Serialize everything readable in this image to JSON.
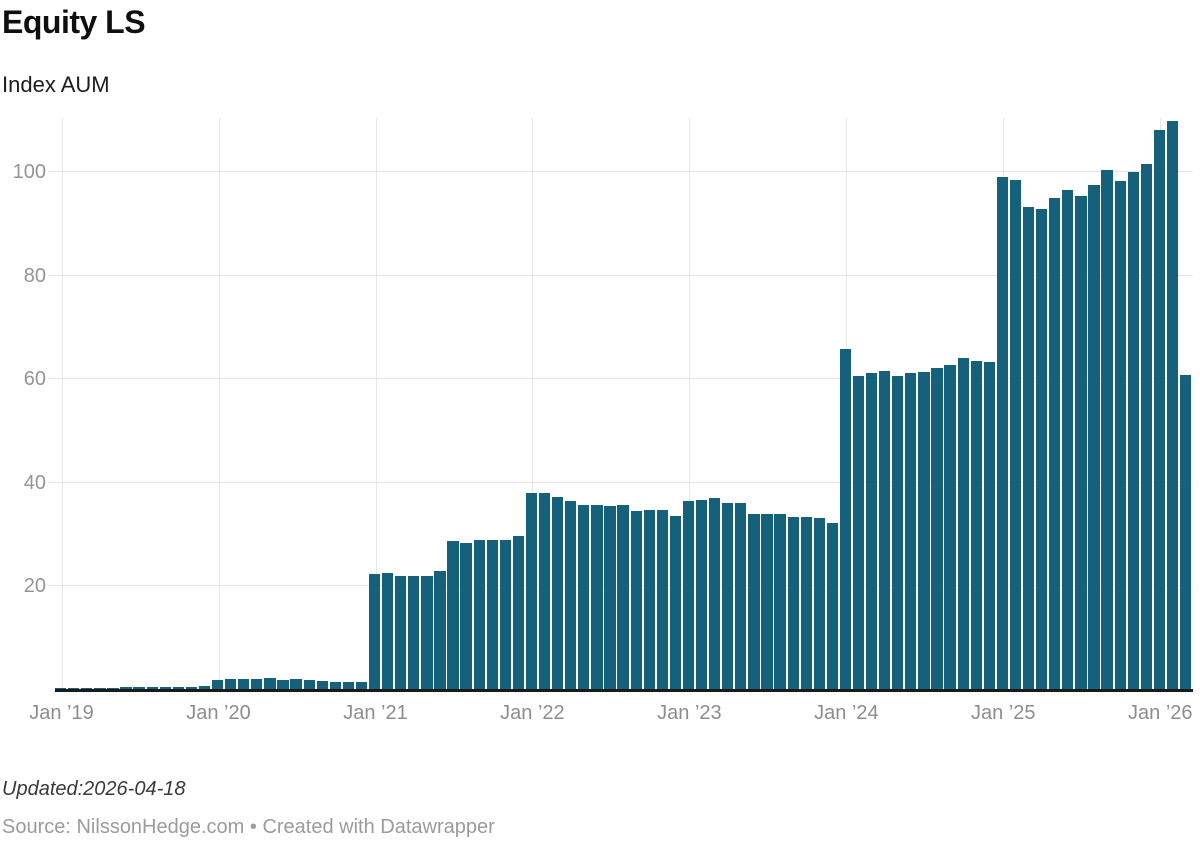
{
  "header": {
    "title": "Equity LS",
    "subtitle": "Index AUM"
  },
  "footer": {
    "updated": "Updated:2026-04-18",
    "source": "Source: NilssonHedge.com • Created with Datawrapper"
  },
  "colors": {
    "bar": "#15607a",
    "baseline": "#1a1a1a",
    "h_gridline": "#e4e4e4",
    "v_gridline": "#e7e7e7",
    "y_label": "#949494",
    "x_label": "#8d8d8d"
  },
  "chart_data": {
    "type": "bar",
    "title": "Equity LS",
    "subtitle": "Index AUM",
    "xlabel": "",
    "ylabel": "",
    "grid": "both",
    "legend": "none",
    "ylim": [
      0,
      110.4
    ],
    "y_ticks": [
      20,
      40,
      60,
      80,
      100
    ],
    "x_tick_labels": [
      "Jan ’19",
      "Jan ’20",
      "Jan ’21",
      "Jan ’22",
      "Jan ’23",
      "Jan ’24",
      "Jan ’25",
      "Jan ’26"
    ],
    "x_tick_indices": [
      0,
      12,
      24,
      36,
      48,
      60,
      72,
      84
    ],
    "x": [
      "2019-01",
      "2019-02",
      "2019-03",
      "2019-04",
      "2019-05",
      "2019-06",
      "2019-07",
      "2019-08",
      "2019-09",
      "2019-10",
      "2019-11",
      "2019-12",
      "2020-01",
      "2020-02",
      "2020-03",
      "2020-04",
      "2020-05",
      "2020-06",
      "2020-07",
      "2020-08",
      "2020-09",
      "2020-10",
      "2020-11",
      "2020-12",
      "2021-01",
      "2021-02",
      "2021-03",
      "2021-04",
      "2021-05",
      "2021-06",
      "2021-07",
      "2021-08",
      "2021-09",
      "2021-10",
      "2021-11",
      "2021-12",
      "2022-01",
      "2022-02",
      "2022-03",
      "2022-04",
      "2022-05",
      "2022-06",
      "2022-07",
      "2022-08",
      "2022-09",
      "2022-10",
      "2022-11",
      "2022-12",
      "2023-01",
      "2023-02",
      "2023-03",
      "2023-04",
      "2023-05",
      "2023-06",
      "2023-07",
      "2023-08",
      "2023-09",
      "2023-10",
      "2023-11",
      "2023-12",
      "2024-01",
      "2024-02",
      "2024-03",
      "2024-04",
      "2024-05",
      "2024-06",
      "2024-07",
      "2024-08",
      "2024-09",
      "2024-10",
      "2024-11",
      "2024-12",
      "2025-01",
      "2025-02",
      "2025-03",
      "2025-04",
      "2025-05",
      "2025-06",
      "2025-07",
      "2025-08",
      "2025-09",
      "2025-10",
      "2025-11",
      "2025-12",
      "2026-01",
      "2026-02",
      "2026-03"
    ],
    "values": [
      0.3,
      0.3,
      0.4,
      0.4,
      0.4,
      0.5,
      0.5,
      0.5,
      0.5,
      0.6,
      0.6,
      0.7,
      2.0,
      2.1,
      2.1,
      2.2,
      2.4,
      2.0,
      2.1,
      1.9,
      1.8,
      1.5,
      1.6,
      1.6,
      22.4,
      22.5,
      22.1,
      22.1,
      22.1,
      22.9,
      28.8,
      28.4,
      29.0,
      28.9,
      28.9,
      29.7,
      38.0,
      38.1,
      37.2,
      36.4,
      35.8,
      35.7,
      35.6,
      35.7,
      34.5,
      34.8,
      34.7,
      33.5,
      36.4,
      36.6,
      37.0,
      36.1,
      36.1,
      34.0,
      33.9,
      33.9,
      33.4,
      33.4,
      33.2,
      32.3,
      65.8,
      60.6,
      61.1,
      61.6,
      60.6,
      61.1,
      61.3,
      62.1,
      62.7,
      64.0,
      63.6,
      63.3,
      99.0,
      98.5,
      93.2,
      92.9,
      95.0,
      96.5,
      95.3,
      97.4,
      100.4,
      98.2,
      100.0,
      101.5,
      108.0,
      109.8,
      60.8
    ]
  }
}
